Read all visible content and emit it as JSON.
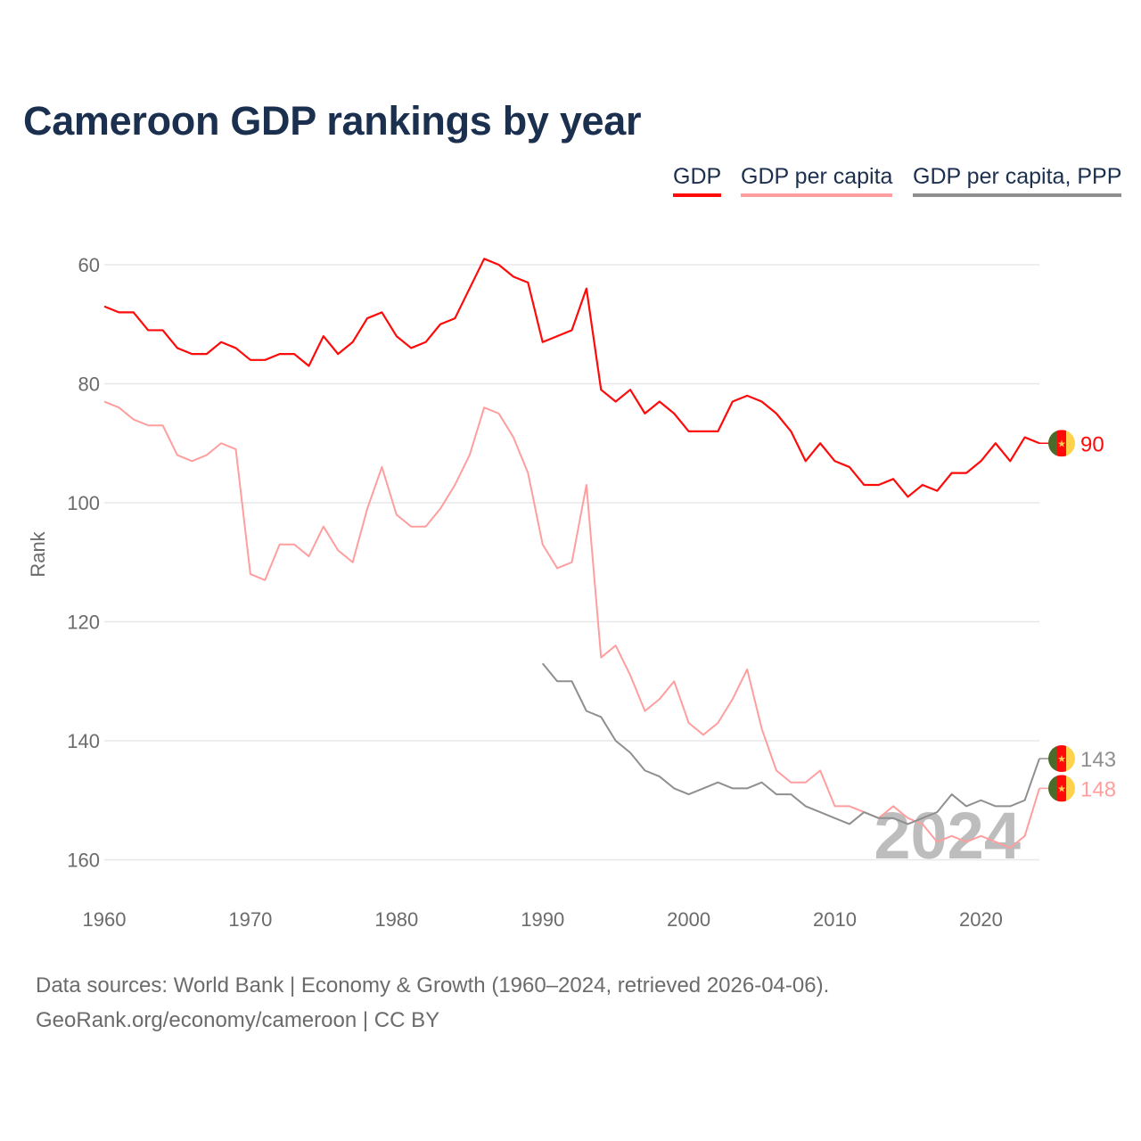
{
  "chart_data": {
    "type": "line",
    "title": "Cameroon GDP rankings by year",
    "xlabel": "",
    "ylabel": "Rank",
    "xlim": [
      1960,
      2024
    ],
    "ylim": [
      55,
      160
    ],
    "y_inverted": true,
    "grid": true,
    "legend_position": "top-right",
    "x_ticks": [
      1960,
      1970,
      1980,
      1990,
      2000,
      2010,
      2020
    ],
    "y_ticks": [
      60,
      80,
      100,
      120,
      140,
      160
    ],
    "annotation": "2024",
    "series": [
      {
        "name": "GDP",
        "color": "#ff0a0a",
        "start_year": 1960,
        "values": [
          67,
          68,
          68,
          71,
          71,
          74,
          75,
          75,
          73,
          74,
          76,
          76,
          75,
          75,
          77,
          72,
          75,
          73,
          69,
          68,
          72,
          74,
          73,
          70,
          69,
          64,
          59,
          60,
          62,
          63,
          73,
          72,
          71,
          64,
          81,
          83,
          81,
          85,
          83,
          85,
          88,
          88,
          88,
          83,
          82,
          83,
          85,
          88,
          93,
          90,
          93,
          94,
          97,
          97,
          96,
          99,
          97,
          98,
          95,
          95,
          93,
          90,
          93,
          89,
          90
        ],
        "end_label": "90"
      },
      {
        "name": "GDP per capita",
        "color": "#ff9e9e",
        "start_year": 1960,
        "values": [
          83,
          84,
          86,
          87,
          87,
          92,
          93,
          92,
          90,
          91,
          112,
          113,
          107,
          107,
          109,
          104,
          108,
          110,
          101,
          94,
          102,
          104,
          104,
          101,
          97,
          92,
          84,
          85,
          89,
          95,
          107,
          111,
          110,
          97,
          126,
          124,
          129,
          135,
          133,
          130,
          137,
          139,
          137,
          133,
          128,
          138,
          145,
          147,
          147,
          145,
          151,
          151,
          152,
          153,
          151,
          153,
          154,
          157,
          156,
          157,
          156,
          157,
          158,
          156,
          148
        ],
        "end_label": "148"
      },
      {
        "name": "GDP per capita, PPP",
        "color": "#8f8f8f",
        "start_year": 1990,
        "values": [
          127,
          130,
          130,
          135,
          136,
          140,
          142,
          145,
          146,
          148,
          149,
          148,
          147,
          148,
          148,
          147,
          149,
          149,
          151,
          152,
          153,
          154,
          152,
          153,
          153,
          154,
          153,
          152,
          149,
          151,
          150,
          151,
          151,
          150,
          143
        ],
        "end_label": "143"
      }
    ]
  },
  "footer": {
    "line1": "Data sources: World Bank | Economy & Growth (1960–2024, retrieved 2026-04-06).",
    "line2": "GeoRank.org/economy/cameroon | CC BY"
  },
  "flag_icon": "cameroon-flag-icon",
  "flag_colors": {
    "green": "#4a6b2a",
    "red": "#ff0a0a",
    "yellow": "#ffd24d"
  }
}
